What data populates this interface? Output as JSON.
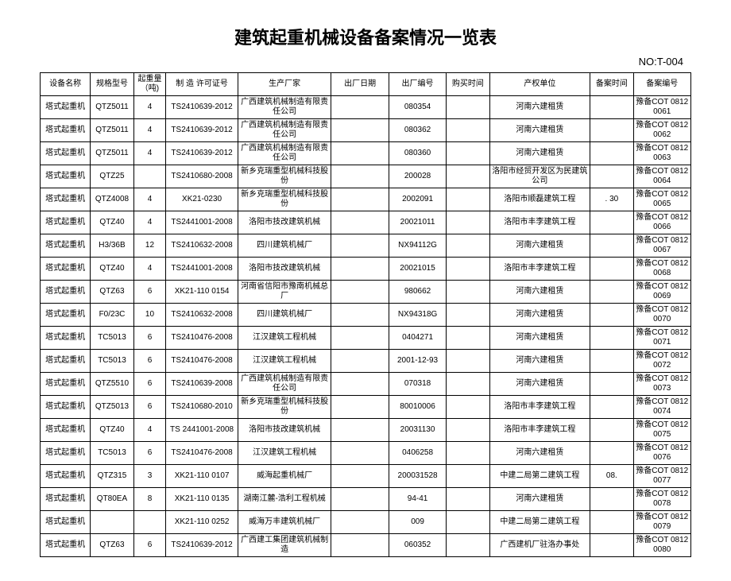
{
  "title": "建筑起重机械设备备案情况一览表",
  "doc_no": "NO:T-004",
  "table": {
    "columns": [
      "设备名称",
      "规格型号",
      "起重量（吨)",
      "制 造 许可证号",
      "生产厂家",
      "出厂日期",
      "出厂编号",
      "购买时间",
      "产权单位",
      "备案时间",
      "备案编号"
    ],
    "rows": [
      [
        "塔式起重机",
        "QTZ5011",
        "4",
        "TS2410639-2012",
        "广西建筑机械制造有限责任公司",
        "",
        "080354",
        "",
        "河南六建租赁",
        "",
        "豫备COT 08120061"
      ],
      [
        "塔式起重机",
        "QTZ5011",
        "4",
        "TS2410639-2012",
        "广西建筑机械制造有限责任公司",
        "",
        "080362",
        "",
        "河南六建租赁",
        "",
        "豫备COT 08120062"
      ],
      [
        "塔式起重机",
        "QTZ5011",
        "4",
        "TS2410639-2012",
        "广西建筑机械制造有限责任公司",
        "",
        "080360",
        "",
        "河南六建租赁",
        "",
        "豫备COT 08120063"
      ],
      [
        "塔式起重机",
        "QTZ25",
        "",
        "TS2410680-2008",
        "新乡克瑞重型机械科技股份",
        "",
        "200028",
        "",
        "洛阳市经贸开发区为民建筑公司",
        "",
        "豫备COT 08120064"
      ],
      [
        "塔式起重机",
        "QTZ4008",
        "4",
        "XK21-0230",
        "新乡克瑞重型机械科技股份",
        "",
        "2002091",
        "",
        "洛阳市顺磊建筑工程",
        ". 30",
        "豫备COT 08120065"
      ],
      [
        "塔式起重机",
        "QTZ40",
        "4",
        "TS2441001-2008",
        "洛阳市技改建筑机械",
        "",
        "20021011",
        "",
        "洛阳市丰李建筑工程",
        "",
        "豫备COT 08120066"
      ],
      [
        "塔式起重机",
        "H3/36B",
        "12",
        "TS2410632-2008",
        "四川建筑机械厂",
        "",
        "NX94112G",
        "",
        "河南六建租赁",
        "",
        "豫备COT 08120067"
      ],
      [
        "塔式起重机",
        "QTZ40",
        "4",
        "TS2441001-2008",
        "洛阳市技改建筑机械",
        "",
        "20021015",
        "",
        "洛阳市丰李建筑工程",
        "",
        "豫备COT 08120068"
      ],
      [
        "塔式起重机",
        "QTZ63",
        "6",
        "XK21-110 0154",
        "河南省信阳市豫南机械总厂",
        "",
        "980662",
        "",
        "河南六建租赁",
        "",
        "豫备COT 08120069"
      ],
      [
        "塔式起重机",
        "F0/23C",
        "10",
        "TS2410632-2008",
        "四川建筑机械厂",
        "",
        "NX94318G",
        "",
        "河南六建租赁",
        "",
        "豫备COT 08120070"
      ],
      [
        "塔式起重机",
        "TC5013",
        "6",
        "TS2410476-2008",
        "江汉建筑工程机械",
        "",
        "0404271",
        "",
        "河南六建租赁",
        "",
        "豫备COT 08120071"
      ],
      [
        "塔式起重机",
        "TC5013",
        "6",
        "TS2410476-2008",
        "江汉建筑工程机械",
        "",
        "2001-12-93",
        "",
        "河南六建租赁",
        "",
        "豫备COT 08120072"
      ],
      [
        "塔式起重机",
        "QTZ5510",
        "6",
        "TS2410639-2008",
        "广西建筑机械制造有限责任公司",
        "",
        "070318",
        "",
        "河南六建租赁",
        "",
        "豫备COT 08120073"
      ],
      [
        "塔式起重机",
        "QTZ5013",
        "6",
        "TS2410680-2010",
        "新乡克瑞重型机械科技股份",
        "",
        "80010006",
        "",
        "洛阳市丰李建筑工程",
        "",
        "豫备COT 08120074"
      ],
      [
        "塔式起重机",
        "QTZ40",
        "4",
        "TS 2441001-2008",
        "洛阳市技改建筑机械",
        "",
        "20031130",
        "",
        "洛阳市丰李建筑工程",
        "",
        "豫备COT 08120075"
      ],
      [
        "塔式起重机",
        "TC5013",
        "6",
        "TS2410476-2008",
        "江汉建筑工程机械",
        "",
        "0406258",
        "",
        "河南六建租赁",
        "",
        "豫备COT 08120076"
      ],
      [
        "塔式起重机",
        "QTZ315",
        "3",
        "XK21-110 0107",
        "威海起重机械厂",
        "",
        "200031528",
        "",
        "中建二局第二建筑工程",
        "08.",
        "豫备COT 08120077"
      ],
      [
        "塔式起重机",
        "QT80EA",
        "8",
        "XK21-110 0135",
        "湖南江麓-浩利工程机械",
        "",
        "94-41",
        "",
        "河南六建租赁",
        "",
        "豫备COT 08120078"
      ],
      [
        "塔式起重机",
        "",
        "",
        "XK21-110 0252",
        "威海万丰建筑机械厂",
        "",
        "009",
        "",
        "中建二局第二建筑工程",
        "",
        "豫备COT 08120079"
      ],
      [
        "塔式起重机",
        "QTZ63",
        "6",
        "TS2410639-2012",
        "广西建工集团建筑机械制造",
        "",
        "060352",
        "",
        "广西建机厂驻洛办事处",
        "",
        "豫备COT 08120080"
      ]
    ]
  }
}
